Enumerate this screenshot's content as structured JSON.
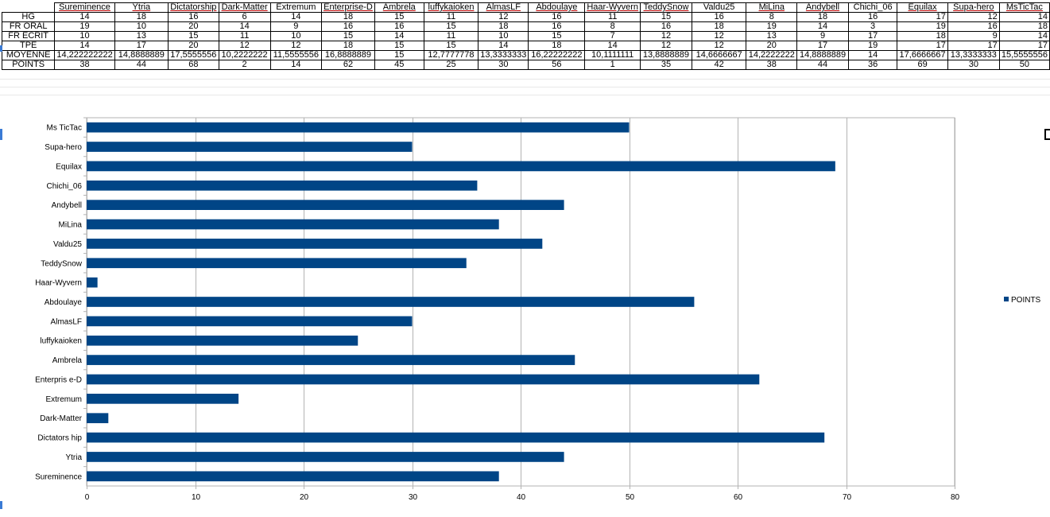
{
  "sheet": {
    "headers": [
      "Sureminence",
      "Ytria",
      "Dictatorship",
      "Dark-Matter",
      "Extremum",
      "Enterprise-D",
      "Ambrela",
      "luffykaioken",
      "AlmasLF",
      "Abdoulaye",
      "Haar-Wyvern",
      "TeddySnow",
      "Valdu25",
      "MiLina",
      "Andybell",
      "Chichi_06",
      "Equilax",
      "Supa-hero",
      "MsTicTac"
    ],
    "rows": [
      {
        "label": "HG",
        "cells": [
          "14",
          "18",
          "16",
          "6",
          "14",
          "18",
          "15",
          "11",
          "12",
          "16",
          "11",
          "15",
          "16",
          "8",
          "18",
          "16",
          "17",
          "12",
          "14"
        ]
      },
      {
        "label": "FR ORAL",
        "cells": [
          "19",
          "10",
          "20",
          "14",
          "9",
          "16",
          "16",
          "15",
          "18",
          "16",
          "8",
          "16",
          "18",
          "19",
          "14",
          "3",
          "19",
          "16",
          "18"
        ]
      },
      {
        "label": "FR ECRIT",
        "cells": [
          "10",
          "13",
          "15",
          "11",
          "10",
          "15",
          "14",
          "11",
          "10",
          "15",
          "7",
          "12",
          "12",
          "13",
          "9",
          "17",
          "18",
          "9",
          "14"
        ]
      },
      {
        "label": "TPE",
        "cells": [
          "14",
          "17",
          "20",
          "12",
          "12",
          "18",
          "15",
          "15",
          "14",
          "18",
          "14",
          "12",
          "12",
          "20",
          "17",
          "19",
          "17",
          "17",
          "17"
        ]
      },
      {
        "label": "MOYENNE",
        "cells": [
          "14,222222222",
          "14,8888889",
          "17,5555556",
          "10,2222222",
          "11,5555556",
          "16,8888889",
          "15",
          "12,7777778",
          "13,3333333",
          "16,22222222",
          "10,1111111",
          "13,8888889",
          "14,6666667",
          "14,2222222",
          "14,8888889",
          "14",
          "17,6666667",
          "13,3333333",
          "15,5555556"
        ]
      },
      {
        "label": "POINTS",
        "cells": [
          "38",
          "44",
          "68",
          "2",
          "14",
          "62",
          "45",
          "25",
          "30",
          "56",
          "1",
          "35",
          "42",
          "38",
          "44",
          "36",
          "69",
          "30",
          "50"
        ]
      }
    ]
  },
  "chart_data": {
    "type": "bar",
    "orientation": "horizontal",
    "categories": [
      "Sureminence",
      "Ytria",
      "Dictators hip",
      "Dark-Matter",
      "Extremum",
      "Enterpris e-D",
      "Ambrela",
      "luffykaioken",
      "AlmasLF",
      "Abdoulaye",
      "Haar-Wyvern",
      "TeddySnow",
      "Valdu25",
      "MiLina",
      "Andybell",
      "Chichi_06",
      "Equilax",
      "Supa-hero",
      "Ms TicTac"
    ],
    "series": [
      {
        "name": "POINTS",
        "values": [
          38,
          44,
          68,
          2,
          14,
          62,
          45,
          25,
          30,
          56,
          1,
          35,
          42,
          38,
          44,
          36,
          69,
          30,
          50
        ],
        "color": "#004586"
      }
    ],
    "xlim": [
      0,
      80
    ],
    "xticks": [
      "0",
      "10",
      "20",
      "30",
      "40",
      "50",
      "60",
      "70",
      "80"
    ],
    "grid": true,
    "legend": "right"
  },
  "colors": {
    "bar": "#004586",
    "grid": "#b3b3b3",
    "header_underline": "#c00000"
  }
}
